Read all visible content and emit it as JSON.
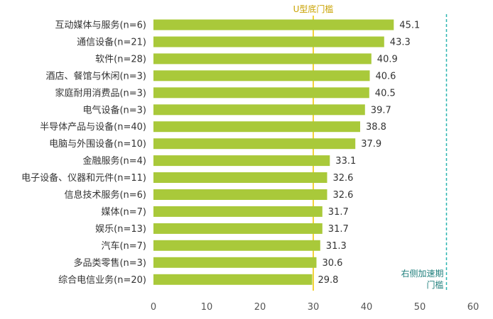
{
  "chart_data": {
    "type": "bar",
    "orientation": "horizontal",
    "categories": [
      "互动媒体与服务(n=6)",
      "通信设备(n=21)",
      "软件(n=28)",
      "酒店、餐馆与休闲(n=3)",
      "家庭耐用消费品(n=3)",
      "电气设备(n=3)",
      "半导体产品与设备(n=40)",
      "电脑与外围设备(n=10)",
      "金融服务(n=4)",
      "电子设备、仪器和元件(n=11)",
      "信息技术服务(n=6)",
      "媒体(n=7)",
      "娱乐(n=13)",
      "汽车(n=7)",
      "多品类零售(n=3)",
      "综合电信业务(n=20)"
    ],
    "values": [
      45.1,
      43.3,
      40.9,
      40.6,
      40.5,
      39.7,
      38.8,
      37.9,
      33.1,
      32.6,
      32.6,
      31.7,
      31.7,
      31.3,
      30.6,
      29.8
    ],
    "value_labels": [
      "45.1",
      "43.3",
      "40.9",
      "40.6",
      "40.5",
      "39.7",
      "38.8",
      "37.9",
      "33.1",
      "32.6",
      "32.6",
      "31.7",
      "31.7",
      "31.3",
      "30.6",
      "29.8"
    ],
    "xlim": [
      0,
      60
    ],
    "xticks": [
      0,
      10,
      20,
      30,
      40,
      50,
      60
    ],
    "xtick_labels": [
      "0",
      "10",
      "20",
      "30",
      "40",
      "50",
      "60"
    ],
    "grid": false,
    "bar_color": "#a9c93a",
    "reference_lines": [
      {
        "value": 30,
        "label_lines": [
          "U型底门槛"
        ],
        "color": "#f2d33b",
        "label_color": "#c9a200",
        "style": "solid"
      },
      {
        "value": 55,
        "label_lines": [
          "右侧加速期",
          "门槛"
        ],
        "color": "#2bb5b0",
        "label_color": "#1f7f7c",
        "style": "dashed"
      }
    ]
  }
}
